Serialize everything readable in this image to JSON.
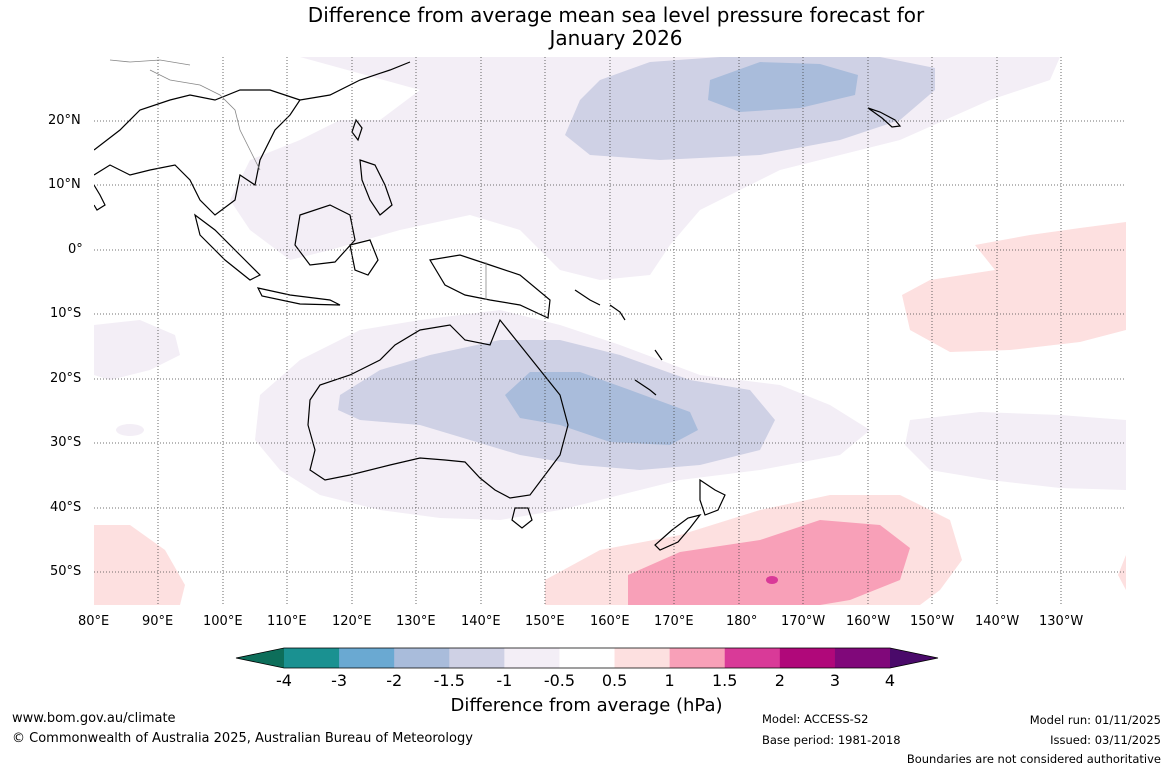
{
  "title": {
    "line1": "Difference from average mean sea level pressure forecast for",
    "line2": "January 2026"
  },
  "lat_labels": [
    "20°N",
    "10°N",
    "0°",
    "10°S",
    "20°S",
    "30°S",
    "40°S",
    "50°S"
  ],
  "lon_labels": [
    "80°E",
    "90°E",
    "100°E",
    "110°E",
    "120°E",
    "130°E",
    "140°E",
    "150°E",
    "160°E",
    "170°E",
    "180°",
    "170°W",
    "160°W",
    "150°W",
    "140°W",
    "130°W"
  ],
  "colorbar": {
    "ticks": [
      "-4",
      "-3",
      "-2",
      "-1.5",
      "-1",
      "-0.5",
      "0.5",
      "1",
      "1.5",
      "2",
      "3",
      "4"
    ],
    "colors": [
      "#1a9191",
      "#6aa9d2",
      "#a9bcdb",
      "#cfd1e5",
      "#f3eef6",
      "#ffffff",
      "#fde0e0",
      "#f8a0b8",
      "#d93a98",
      "#b0087a",
      "#80087a"
    ],
    "under_color": "#0d6e5a",
    "over_color": "#4a0a6a",
    "label": "Difference from average (hPa)"
  },
  "footer": {
    "website": "www.bom.gov.au/climate",
    "copyright": "© Commonwealth of Australia 2025, Australian Bureau of Meteorology",
    "model": "Model: ACCESS-S2",
    "base_period": "Base period: 1981-2018",
    "model_run": "Model run: 01/11/2025",
    "issued": "Issued: 03/11/2025",
    "disclaimer": "Boundaries are not considered authoritative"
  }
}
